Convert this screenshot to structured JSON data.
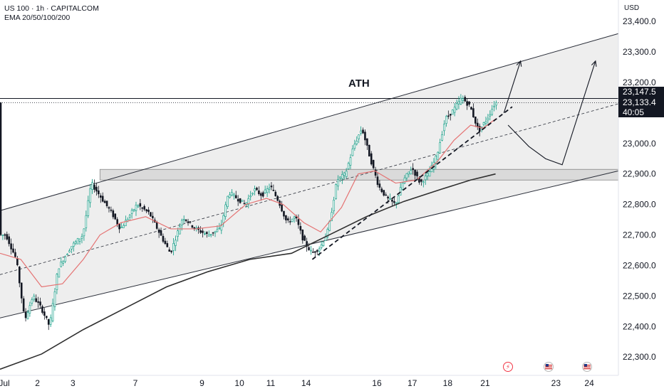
{
  "header": {
    "symbol_line": "US 100 · 1h · CAPITALCOM",
    "indicator_line": "EMA 20/50/100/200"
  },
  "axis": {
    "currency": "USD"
  },
  "annotation_ath": "ATH",
  "price_tags": {
    "ath": "23,147.5",
    "last": "23,133.4",
    "countdown": "40:05"
  },
  "icons": {
    "event_1": "lightning-event-icon",
    "event_2": "us-flag-event-icon",
    "event_3": "us-flag-event-icon"
  },
  "colors": {
    "candle_up": "#089981",
    "candle_down": "#131722",
    "ema20": "#e57373",
    "ema200": "#2f2f2f",
    "channel_fill": "#ebebeb",
    "zone_fill": "#d6d6d6"
  },
  "chart_data": {
    "type": "candlestick",
    "symbol": "US 100",
    "interval": "1h",
    "ylim": [
      22240,
      23470
    ],
    "y_ticks": [
      "23,400.0",
      "23,300.0",
      "23,200.0",
      "23,100.0",
      "23,000.0",
      "22,900.0",
      "22,800.0",
      "22,700.0",
      "22,600.0",
      "22,500.0",
      "22,400.0",
      "22,300.0"
    ],
    "y_tick_values": [
      23400,
      23300,
      23200,
      23100,
      23000,
      22900,
      22800,
      22700,
      22600,
      22500,
      22400,
      22300
    ],
    "x_ticks": [
      "Jul",
      "2",
      "3",
      "7",
      "9",
      "10",
      "11",
      "14",
      "16",
      "17",
      "18",
      "21",
      "23",
      "24"
    ],
    "x_tick_bars": [
      0,
      18,
      35,
      65,
      97,
      115,
      130,
      147,
      181,
      198,
      215,
      233,
      267,
      283
    ],
    "ath_level": 23147.5,
    "last_price": 23133.4,
    "resistance_zone": [
      22880,
      22915
    ],
    "price_path": [
      [
        0,
        22700
      ],
      [
        3,
        22700
      ],
      [
        8,
        22620
      ],
      [
        12,
        22420
      ],
      [
        16,
        22500
      ],
      [
        20,
        22460
      ],
      [
        24,
        22400
      ],
      [
        28,
        22590
      ],
      [
        34,
        22660
      ],
      [
        40,
        22700
      ],
      [
        44,
        22870
      ],
      [
        48,
        22830
      ],
      [
        54,
        22770
      ],
      [
        58,
        22720
      ],
      [
        62,
        22760
      ],
      [
        66,
        22800
      ],
      [
        72,
        22770
      ],
      [
        78,
        22690
      ],
      [
        82,
        22640
      ],
      [
        88,
        22760
      ],
      [
        94,
        22720
      ],
      [
        100,
        22700
      ],
      [
        106,
        22720
      ],
      [
        110,
        22840
      ],
      [
        114,
        22820
      ],
      [
        118,
        22800
      ],
      [
        122,
        22850
      ],
      [
        126,
        22830
      ],
      [
        130,
        22860
      ],
      [
        134,
        22810
      ],
      [
        138,
        22740
      ],
      [
        142,
        22760
      ],
      [
        146,
        22680
      ],
      [
        150,
        22640
      ],
      [
        154,
        22660
      ],
      [
        158,
        22720
      ],
      [
        162,
        22880
      ],
      [
        166,
        22900
      ],
      [
        170,
        22990
      ],
      [
        174,
        23050
      ],
      [
        178,
        22950
      ],
      [
        182,
        22860
      ],
      [
        186,
        22820
      ],
      [
        190,
        22800
      ],
      [
        194,
        22880
      ],
      [
        198,
        22920
      ],
      [
        202,
        22870
      ],
      [
        206,
        22900
      ],
      [
        210,
        22960
      ],
      [
        214,
        23080
      ],
      [
        218,
        23110
      ],
      [
        222,
        23150
      ],
      [
        226,
        23120
      ],
      [
        230,
        23040
      ],
      [
        234,
        23080
      ],
      [
        238,
        23133.4
      ]
    ],
    "ema20": [
      [
        0,
        22640
      ],
      [
        10,
        22620
      ],
      [
        20,
        22530
      ],
      [
        30,
        22540
      ],
      [
        40,
        22620
      ],
      [
        48,
        22700
      ],
      [
        58,
        22740
      ],
      [
        70,
        22760
      ],
      [
        82,
        22720
      ],
      [
        94,
        22720
      ],
      [
        106,
        22730
      ],
      [
        118,
        22800
      ],
      [
        128,
        22820
      ],
      [
        136,
        22800
      ],
      [
        146,
        22740
      ],
      [
        154,
        22710
      ],
      [
        164,
        22790
      ],
      [
        172,
        22900
      ],
      [
        180,
        22910
      ],
      [
        190,
        22870
      ],
      [
        200,
        22880
      ],
      [
        210,
        22940
      ],
      [
        218,
        23010
      ],
      [
        226,
        23060
      ],
      [
        232,
        23050
      ],
      [
        238,
        23080
      ]
    ],
    "ema200": [
      [
        0,
        22260
      ],
      [
        20,
        22310
      ],
      [
        40,
        22390
      ],
      [
        60,
        22460
      ],
      [
        80,
        22530
      ],
      [
        100,
        22580
      ],
      [
        120,
        22620
      ],
      [
        140,
        22640
      ],
      [
        158,
        22700
      ],
      [
        176,
        22760
      ],
      [
        194,
        22810
      ],
      [
        212,
        22850
      ],
      [
        226,
        22880
      ],
      [
        238,
        22900
      ]
    ],
    "channel_upper": [
      [
        -5,
        22770
      ],
      [
        297,
        23360
      ]
    ],
    "channel_lower": [
      [
        -5,
        22420
      ],
      [
        297,
        22910
      ]
    ],
    "trendline_mid": [
      [
        0,
        22570
      ],
      [
        297,
        23130
      ]
    ],
    "trendline_support": [
      [
        150,
        22620
      ],
      [
        246,
        23120
      ]
    ],
    "projection_1": [
      [
        242,
        23100
      ],
      [
        250,
        23270
      ]
    ],
    "projection_2": [
      [
        244,
        23060
      ],
      [
        254,
        22990
      ],
      [
        262,
        22950
      ],
      [
        270,
        22930
      ],
      [
        286,
        23270
      ]
    ]
  }
}
